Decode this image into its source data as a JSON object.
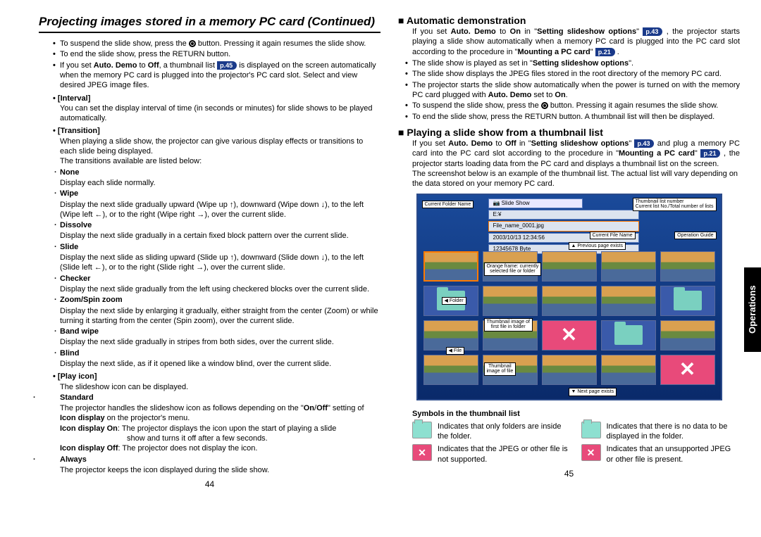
{
  "title": "Projecting images stored in a memory PC card (Continued)",
  "side_tab": "Operations",
  "left": {
    "bullets": [
      "To suspend the slide show, press the ⏺ button. Pressing it again resumes the slide show.",
      "To end the slide show, press the RETURN button.",
      "If you set <b>Auto. Demo</b> to <b>Off</b>, a thumbnail list <ref>p.45</ref> is displayed on the screen automatically when the memory PC card is plugged into the projector's PC card slot. Select and view desired JPEG image files."
    ],
    "interval_head": "• [Interval]",
    "interval_body": "You can set the display interval of time (in seconds or minutes) for slide shows to be played automatically.",
    "transition_head": "• [Transition]",
    "transition_body1": "When playing a slide show, the projector can give various display effects or transitions to each slide being displayed.",
    "transition_body2": "The transitions available are listed below:",
    "trans": [
      {
        "name": "None",
        "desc": "Display each slide normally."
      },
      {
        "name": "Wipe",
        "desc": "Display the next slide gradually upward (Wipe up ↑), downward (Wipe down ↓), to the left (Wipe left ←), or to the right (Wipe right →), over the current slide."
      },
      {
        "name": "Dissolve",
        "desc": "Display the next slide gradually in a certain fixed block pattern over the current slide."
      },
      {
        "name": "Slide",
        "desc": "Display the next slide as sliding upward (Slide up ↑), downward (Slide down ↓), to the left (Slide left ←), or to the right (Slide right →), over the current slide."
      },
      {
        "name": "Checker",
        "desc": "Display the next slide gradually from the left using checkered blocks over the current slide."
      },
      {
        "name": "Zoom/Spin zoom",
        "desc": "Display the next slide by enlarging it gradually, either straight from the center (Zoom) or while turning it starting from the center (Spin zoom), over the current slide."
      },
      {
        "name": "Band wipe",
        "desc": "Display the next slide gradually in stripes from both sides, over the current slide."
      },
      {
        "name": "Blind",
        "desc": "Display the next slide, as if it opened like a window blind, over the current slide."
      }
    ],
    "playicon_head": "• [Play icon]",
    "playicon_body": "The slideshow icon can be displayed.",
    "standard_head": "Standard",
    "standard_body": "The projector handles the slideshow icon as follows depending on the \"<b>On</b>/<b>Off</b>\" setting of <b>Icon display</b> on the projector's menu.",
    "icon_on": "<b>Icon display On</b>: The projector displays the icon upon the start of playing a slide show and turns it off after a few seconds.",
    "icon_off": "<b>Icon display Off</b>: The projector does not display the icon.",
    "always_head": "Always",
    "always_body": "The projector keeps the icon displayed during the slide show.",
    "page": "44"
  },
  "right": {
    "auto_head": "Automatic demonstration",
    "auto_body": "If you set <b>Auto. Demo</b> to <b>On</b> in \"<b>Setting slideshow options</b>\" <ref>p.43</ref> , the projector starts playing a slide show automatically when a memory PC card is plugged into the PC card slot according to the procedure in \"<b>Mounting a PC card</b>\" <ref>p.21</ref> .",
    "auto_bullets": [
      "The slide show is played as set in \"<b>Setting slideshow options</b>\".",
      "The slide show displays the JPEG files stored in the root directory of the memory PC card.",
      "The projector starts the slide show automatically when the power is turned on with the memory PC card plugged with <b>Auto. Demo</b> set to <b>On</b>.",
      "To suspend the slide show, press the ⏺ button. Pressing it again resumes the slide show.",
      "To end the slide show, press the RETURN button. A thumbnail list will then be displayed."
    ],
    "play_head": "Playing a slide show from a thumbnail list",
    "play_body": "If you set <b>Auto. Demo</b> to <b>Off</b> in \"<b>Setting slideshow options</b>\" <ref>p.43</ref> and plug a memory PC card into the PC card slot according to the procedure in \"<b>Mounting a PC card</b>\" <ref>p.21</ref> , the projector starts loading data from the PC card and displays a thumbnail list on the screen.",
    "play_body2": "The screenshot below is an example of the thumbnail list. The actual list will vary depending on the data stored on your memory PC card.",
    "anno": {
      "current_folder_name": "Current Folder Name",
      "thumb_list_number": "Thumbnail list number",
      "thumb_list_sub": "Current list No./Total number of lists",
      "current_file_name": "Current File Name",
      "operation_guide": "Operation Guide",
      "prev_page": "Previous page exists",
      "orange_frame": "Orange frame: currently\nselected file or folder",
      "folder_label": "Folder",
      "thumb_first": "Thumbnail image of\nfirst file in folder",
      "file_label": "File",
      "thumb_file": "Thumbnail\nimage of file",
      "next_page": "Next page exists"
    },
    "symbols_head": "Symbols in the thumbnail list",
    "symbols": [
      [
        {
          "icon": "teal",
          "text": "Indicates that only folders are inside the folder."
        },
        {
          "icon": "teal",
          "text": "Indicates that there is no data to be displayed in the folder."
        }
      ],
      [
        {
          "icon": "pink",
          "text": "Indicates that the JPEG or other file is not supported."
        },
        {
          "icon": "pink",
          "text": "Indicates that an unsupported JPEG or other file is present."
        }
      ]
    ],
    "page": "45"
  }
}
